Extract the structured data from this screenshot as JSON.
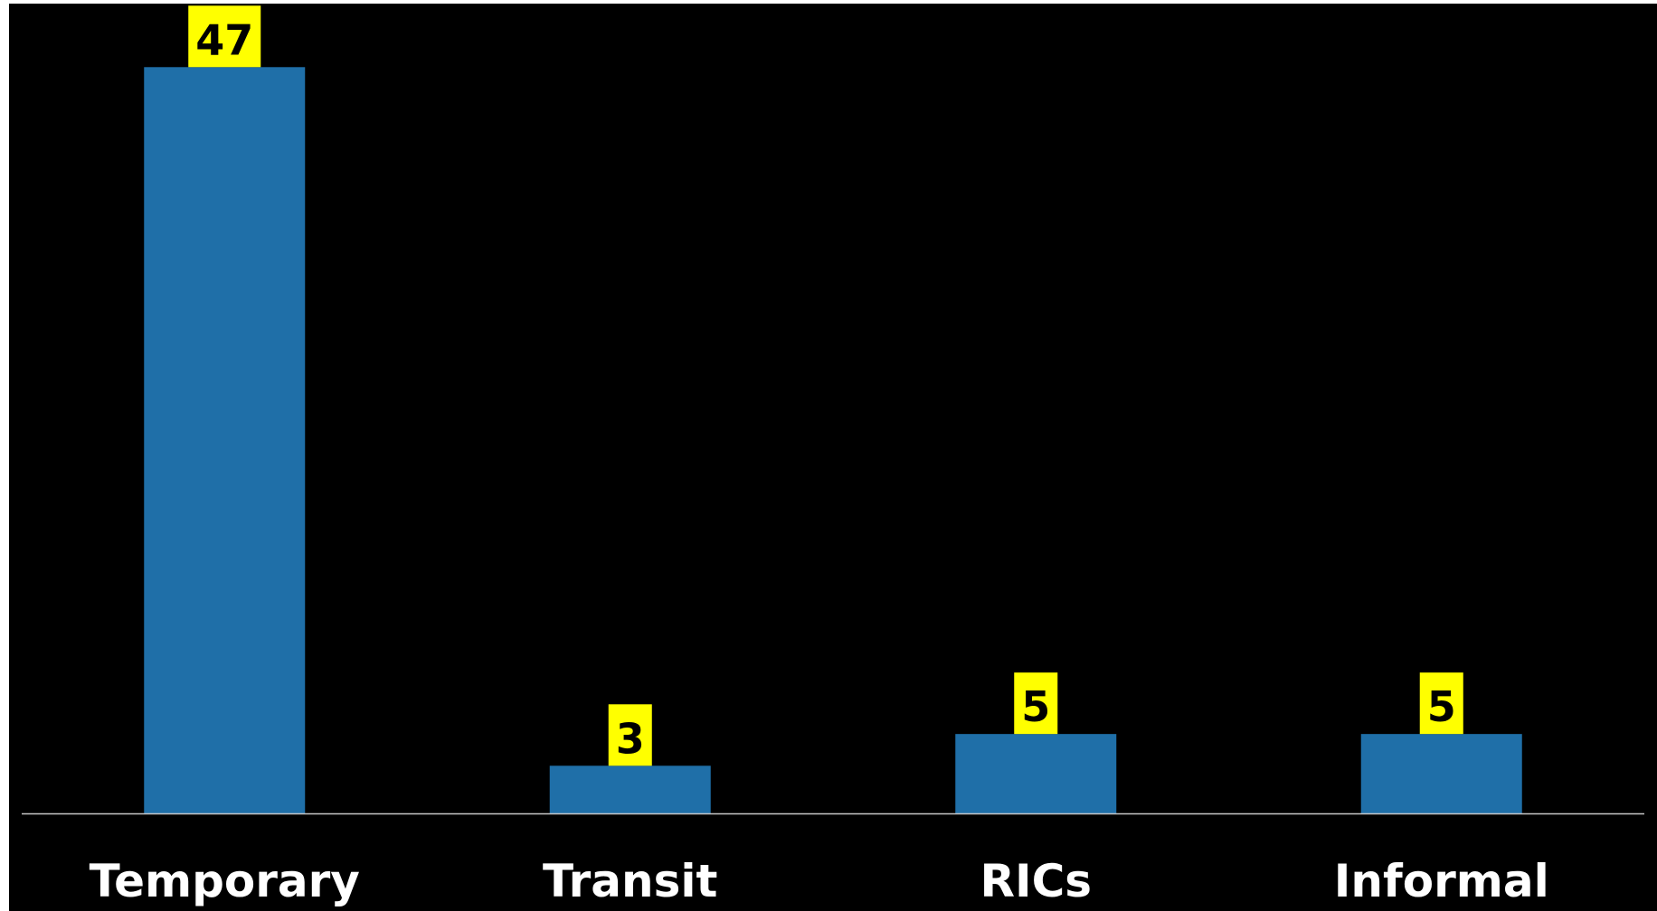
{
  "chart_data": {
    "type": "bar",
    "categories": [
      "Temporary",
      "Transit",
      "RICs",
      "Informal"
    ],
    "values": [
      47,
      3,
      5,
      5
    ],
    "data_labels": [
      "47",
      "3",
      "5",
      "5"
    ],
    "ylim": [
      0,
      51
    ],
    "grid": false,
    "legend": "none",
    "colors": {
      "background": "#000000",
      "bar": "#1f6fa8",
      "label_box": "#ffff00",
      "label_text": "#000000",
      "category_text": "#ffffff",
      "axis_line": "#c8c8c8"
    }
  }
}
